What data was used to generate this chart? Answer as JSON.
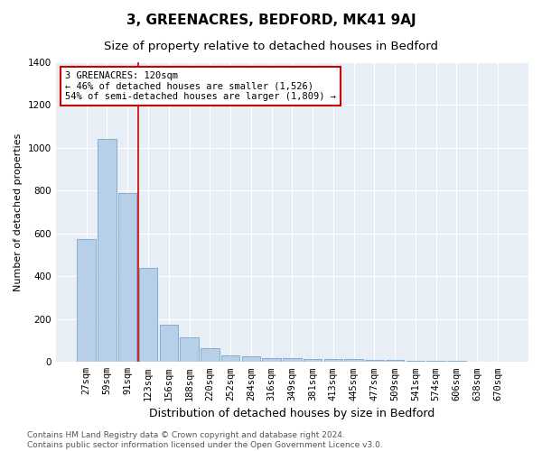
{
  "title": "3, GREENACRES, BEDFORD, MK41 9AJ",
  "subtitle": "Size of property relative to detached houses in Bedford",
  "xlabel": "Distribution of detached houses by size in Bedford",
  "ylabel": "Number of detached properties",
  "categories": [
    "27sqm",
    "59sqm",
    "91sqm",
    "123sqm",
    "156sqm",
    "188sqm",
    "220sqm",
    "252sqm",
    "284sqm",
    "316sqm",
    "349sqm",
    "381sqm",
    "413sqm",
    "445sqm",
    "477sqm",
    "509sqm",
    "541sqm",
    "574sqm",
    "606sqm",
    "638sqm",
    "670sqm"
  ],
  "values": [
    575,
    1040,
    790,
    440,
    175,
    115,
    65,
    30,
    25,
    20,
    20,
    12,
    12,
    12,
    10,
    8,
    6,
    6,
    5,
    3,
    0
  ],
  "bar_color": "#b8cfe8",
  "bar_edge_color": "#6699cc",
  "vline_color": "#cc0000",
  "vline_x": 2.5,
  "annotation_text": "3 GREENACRES: 120sqm\n← 46% of detached houses are smaller (1,526)\n54% of semi-detached houses are larger (1,809) →",
  "annotation_box_facecolor": "white",
  "annotation_box_edgecolor": "#cc0000",
  "ylim": [
    0,
    1400
  ],
  "yticks": [
    0,
    200,
    400,
    600,
    800,
    1000,
    1200,
    1400
  ],
  "background_color": "#e8eef5",
  "grid_color": "white",
  "footer_line1": "Contains HM Land Registry data © Crown copyright and database right 2024.",
  "footer_line2": "Contains public sector information licensed under the Open Government Licence v3.0.",
  "title_fontsize": 11,
  "subtitle_fontsize": 9.5,
  "xlabel_fontsize": 9,
  "ylabel_fontsize": 8,
  "tick_fontsize": 7.5,
  "footer_fontsize": 6.5,
  "ann_fontsize": 7.5
}
